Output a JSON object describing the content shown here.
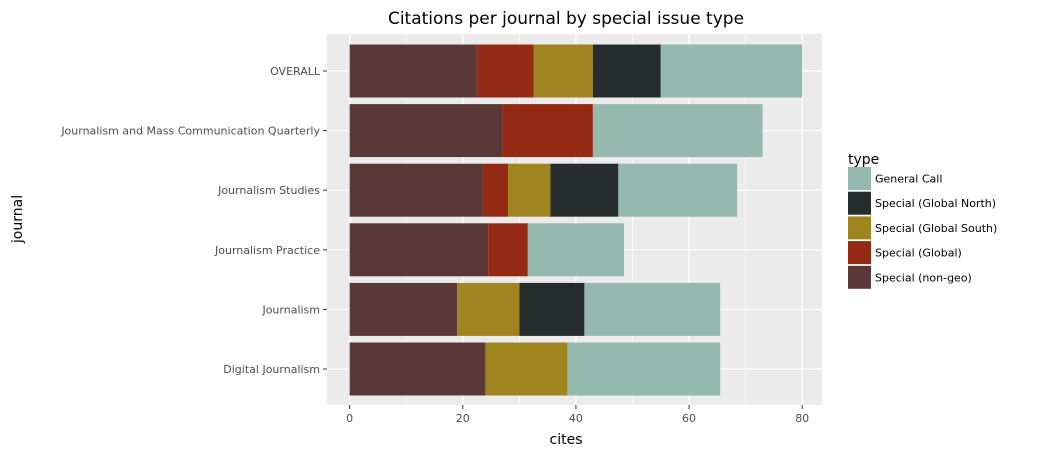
{
  "chart_data": {
    "type": "bar",
    "orientation": "horizontal",
    "stacked": true,
    "title": "Citations per journal by special issue type",
    "xlabel": "cites",
    "ylabel": "journal",
    "xlim": [
      -4,
      83.5
    ],
    "xticks": [
      0,
      20,
      40,
      60,
      80
    ],
    "grid": true,
    "legend_title": "type",
    "legend_position": "right",
    "categories": [
      "OVERALL",
      "Journalism and Mass Communication Quarterly",
      "Journalism Studies",
      "Journalism Practice",
      "Journalism",
      "Digital Journalism"
    ],
    "series": [
      {
        "name": "Special (non-geo)",
        "color": "#5b3838",
        "values": [
          22.5,
          27,
          23.5,
          24.5,
          19,
          24
        ]
      },
      {
        "name": "Special (Global)",
        "color": "#942a13",
        "values": [
          10,
          16,
          4.5,
          7,
          0,
          0
        ]
      },
      {
        "name": "Special (Global South)",
        "color": "#a08420",
        "values": [
          10.5,
          0,
          7.5,
          0,
          11,
          14.5
        ]
      },
      {
        "name": "Special (Global North)",
        "color": "#272c2c",
        "values": [
          12,
          0,
          12,
          0,
          11.5,
          0
        ]
      },
      {
        "name": "General Call",
        "color": "#95b9ae",
        "values": [
          25,
          30,
          21,
          17,
          24,
          27
        ]
      }
    ],
    "legend_order": [
      "General Call",
      "Special (Global North)",
      "Special (Global South)",
      "Special (Global)",
      "Special (non-geo)"
    ]
  }
}
